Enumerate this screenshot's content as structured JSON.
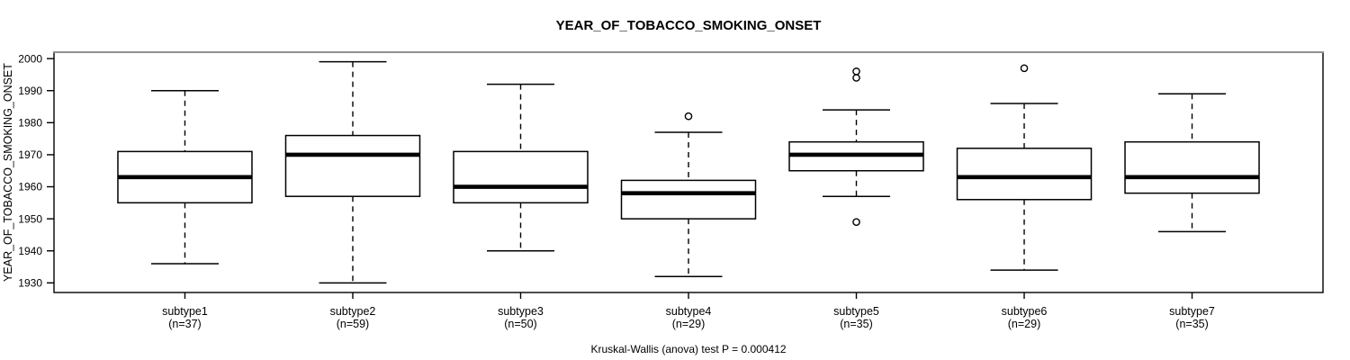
{
  "chart_data": {
    "type": "boxplot",
    "title": "YEAR_OF_TOBACCO_SMOKING_ONSET",
    "ylabel": "YEAR_OF_TOBACCO_SMOKING_ONSET",
    "xlabel": "",
    "ylim": [
      1927,
      2002
    ],
    "yticks": [
      1930,
      1940,
      1950,
      1960,
      1970,
      1980,
      1990,
      2000
    ],
    "grid": false,
    "legend": "none",
    "annotation": "Kruskal-Wallis (anova) test P = 0.000412",
    "groups": [
      {
        "label": "subtype1",
        "sublabel": "(n=37)",
        "n": 37,
        "whisker_low": 1936,
        "q1": 1955,
        "median": 1963,
        "q3": 1971,
        "whisker_high": 1990,
        "outliers": []
      },
      {
        "label": "subtype2",
        "sublabel": "(n=59)",
        "n": 59,
        "whisker_low": 1930,
        "q1": 1957,
        "median": 1970,
        "q3": 1976,
        "whisker_high": 1999,
        "outliers": []
      },
      {
        "label": "subtype3",
        "sublabel": "(n=50)",
        "n": 50,
        "whisker_low": 1940,
        "q1": 1955,
        "median": 1960,
        "q3": 1971,
        "whisker_high": 1992,
        "outliers": []
      },
      {
        "label": "subtype4",
        "sublabel": "(n=29)",
        "n": 29,
        "whisker_low": 1932,
        "q1": 1950,
        "median": 1958,
        "q3": 1962,
        "whisker_high": 1977,
        "outliers": [
          1982
        ]
      },
      {
        "label": "subtype5",
        "sublabel": "(n=35)",
        "n": 35,
        "whisker_low": 1957,
        "q1": 1965,
        "median": 1970,
        "q3": 1974,
        "whisker_high": 1984,
        "outliers": [
          1994,
          1996,
          1949
        ]
      },
      {
        "label": "subtype6",
        "sublabel": "(n=29)",
        "n": 29,
        "whisker_low": 1934,
        "q1": 1956,
        "median": 1963,
        "q3": 1972,
        "whisker_high": 1986,
        "outliers": [
          1997
        ]
      },
      {
        "label": "subtype7",
        "sublabel": "(n=35)",
        "n": 35,
        "whisker_low": 1946,
        "q1": 1958,
        "median": 1963,
        "q3": 1974,
        "whisker_high": 1989,
        "outliers": []
      }
    ]
  },
  "colors": {
    "line": "#000000",
    "background": "#ffffff",
    "box_fill": "#ffffff",
    "frame_top_edge": "#909090"
  }
}
